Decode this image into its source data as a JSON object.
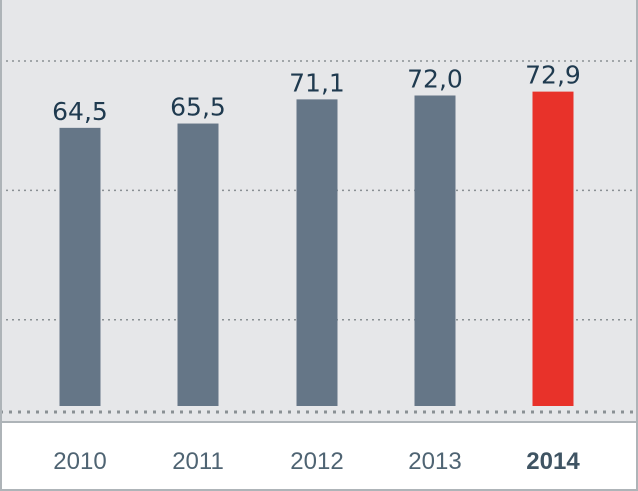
{
  "chart_data": {
    "type": "bar",
    "categories": [
      "2010",
      "2011",
      "2012",
      "2013",
      "2014"
    ],
    "values": [
      64.5,
      65.5,
      71.1,
      72.0,
      72.9
    ],
    "value_labels": [
      "64,5",
      "65,5",
      "71,1",
      "72,0",
      "72,9"
    ],
    "highlight_index": 4,
    "title": "",
    "xlabel": "",
    "ylabel": "",
    "ylim": [
      0,
      80
    ],
    "grid": true,
    "legend": "none"
  },
  "colors": {
    "plot_background": "#e6e7e9",
    "bar": "#657687",
    "bar_highlight": "#e8322a",
    "gridline": "#8a9094",
    "axis_band": "#ffffff",
    "frame": "#aeb4b8"
  }
}
